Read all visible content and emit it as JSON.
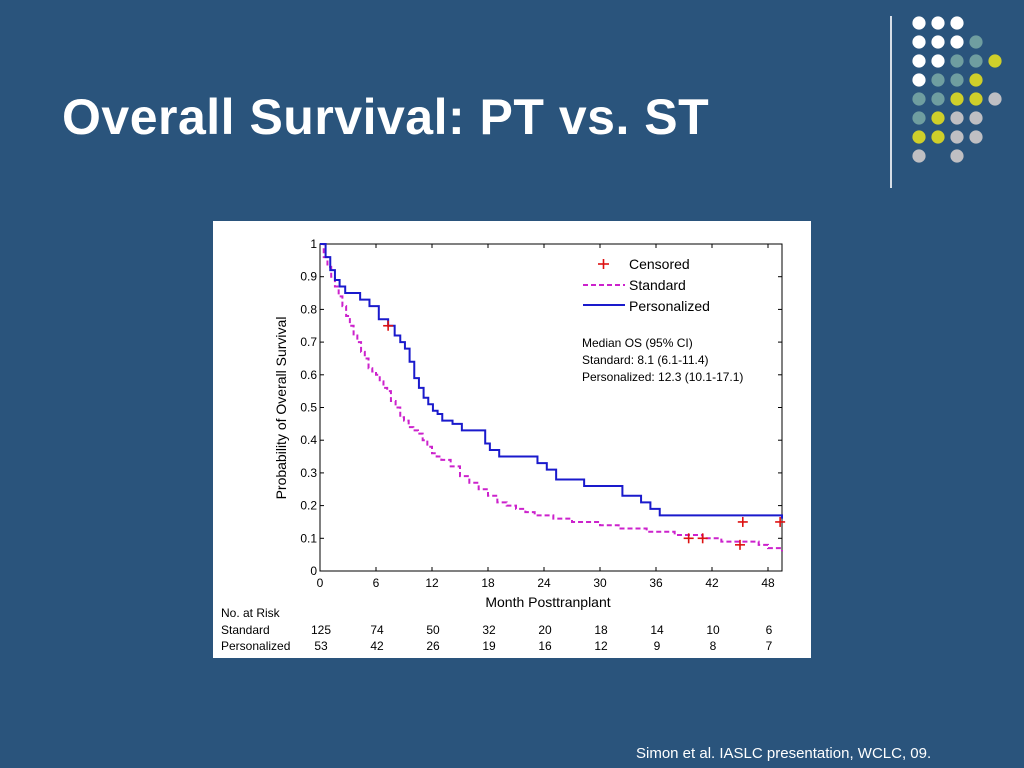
{
  "slide": {
    "title": "Overall Survival: PT vs. ST",
    "citation": "Simon et al. IASLC presentation, WCLC, 09."
  },
  "decoration": {
    "dot_grid": [
      [
        "white",
        "white",
        "white",
        null,
        null
      ],
      [
        "white",
        "white",
        "white",
        "teal",
        null
      ],
      [
        "white",
        "white",
        "teal",
        "teal",
        "yellow"
      ],
      [
        "white",
        "teal",
        "teal",
        "yellow",
        null
      ],
      [
        "teal",
        "teal",
        "yellow",
        "yellow",
        "grey"
      ],
      [
        "teal",
        "yellow",
        "grey",
        "grey",
        null
      ],
      [
        "yellow",
        "yellow",
        "grey",
        "grey",
        null
      ],
      [
        "grey",
        null,
        "grey",
        null,
        null
      ]
    ],
    "colors": {
      "white": "#ffffff",
      "teal": "#6f9ea0",
      "yellow": "#cfcf2a",
      "grey": "#bfbfc3"
    }
  },
  "chart_data": {
    "type": "line",
    "title": "",
    "xlabel": "Month Posttranplant",
    "ylabel": "Probability of Overall Survival",
    "xlim": [
      0,
      49.5
    ],
    "ylim": [
      0,
      1
    ],
    "x_ticks": [
      "0",
      "6",
      "12",
      "18",
      "24",
      "30",
      "36",
      "42",
      "48"
    ],
    "y_ticks": [
      "0",
      "0.1",
      "0.2",
      "0.3",
      "0.4",
      "0.5",
      "0.6",
      "0.7",
      "0.8",
      "0.9",
      "1"
    ],
    "legend": {
      "placement": "top-right",
      "entries": [
        "Censored",
        "Standard",
        "Personalized"
      ]
    },
    "annotation": {
      "heading": "Median OS (95% CI)",
      "lines": [
        "Standard: 8.1 (6.1-11.4)",
        "Personalized: 12.3 (10.1-17.1)"
      ]
    },
    "series": [
      {
        "name": "Standard",
        "color": "#cc22cc",
        "style": "dashed",
        "x": [
          0,
          0.4,
          0.8,
          1.2,
          1.6,
          2.0,
          2.4,
          2.8,
          3.2,
          3.6,
          4.0,
          4.4,
          4.8,
          5.2,
          5.6,
          6.0,
          6.4,
          6.8,
          7.2,
          7.6,
          8.1,
          8.6,
          9.0,
          9.5,
          10.0,
          10.5,
          11.0,
          11.5,
          12.0,
          12.5,
          13.0,
          14.0,
          15.0,
          16.0,
          17.0,
          18.0,
          19.0,
          20.0,
          21.0,
          22.0,
          23.0,
          25.0,
          27.0,
          30.0,
          32.0,
          35.0,
          38.0,
          41.0,
          43.0,
          45.0,
          47.0,
          48.0,
          49.5
        ],
        "y": [
          1.0,
          0.96,
          0.93,
          0.9,
          0.87,
          0.84,
          0.81,
          0.78,
          0.75,
          0.72,
          0.7,
          0.67,
          0.65,
          0.62,
          0.61,
          0.6,
          0.58,
          0.56,
          0.55,
          0.52,
          0.5,
          0.47,
          0.46,
          0.44,
          0.43,
          0.42,
          0.4,
          0.38,
          0.36,
          0.35,
          0.34,
          0.32,
          0.29,
          0.27,
          0.25,
          0.23,
          0.21,
          0.2,
          0.19,
          0.18,
          0.17,
          0.16,
          0.15,
          0.14,
          0.13,
          0.12,
          0.11,
          0.1,
          0.09,
          0.09,
          0.08,
          0.07,
          0.06
        ]
      },
      {
        "name": "Personalized",
        "color": "#1a1acc",
        "style": "solid",
        "x": [
          0,
          0.6,
          1.1,
          1.6,
          2.1,
          2.7,
          3.2,
          4.3,
          5.3,
          6.3,
          7.3,
          8.0,
          8.6,
          9.1,
          9.6,
          10.1,
          10.6,
          11.1,
          11.6,
          12.1,
          12.6,
          13.1,
          14.2,
          15.2,
          17.2,
          17.7,
          18.2,
          19.2,
          22.3,
          23.3,
          24.3,
          25.3,
          28.3,
          32.4,
          34.4,
          35.4,
          36.4,
          49.5
        ],
        "y": [
          1.0,
          0.96,
          0.92,
          0.89,
          0.87,
          0.85,
          0.85,
          0.83,
          0.81,
          0.77,
          0.75,
          0.72,
          0.7,
          0.68,
          0.64,
          0.59,
          0.56,
          0.53,
          0.51,
          0.49,
          0.48,
          0.46,
          0.45,
          0.43,
          0.43,
          0.39,
          0.37,
          0.35,
          0.35,
          0.33,
          0.31,
          0.28,
          0.26,
          0.23,
          0.21,
          0.19,
          0.17,
          0.16
        ]
      }
    ],
    "censored": {
      "color": "#dd1111",
      "points": [
        {
          "x": 7.3,
          "y": 0.75
        },
        {
          "x": 39.5,
          "y": 0.1
        },
        {
          "x": 41.0,
          "y": 0.1
        },
        {
          "x": 45.0,
          "y": 0.08
        },
        {
          "x": 45.3,
          "y": 0.15
        },
        {
          "x": 49.3,
          "y": 0.15
        }
      ]
    },
    "risk_table": {
      "title": "No. at Risk",
      "at_months": [
        "0",
        "6",
        "12",
        "18",
        "24",
        "30",
        "36",
        "42",
        "48"
      ],
      "rows": [
        {
          "label": "Standard",
          "values": [
            "125",
            "74",
            "50",
            "32",
            "20",
            "18",
            "14",
            "10",
            "6"
          ]
        },
        {
          "label": "Personalized",
          "values": [
            "53",
            "42",
            "26",
            "19",
            "16",
            "12",
            "9",
            "8",
            "7"
          ]
        }
      ]
    }
  }
}
